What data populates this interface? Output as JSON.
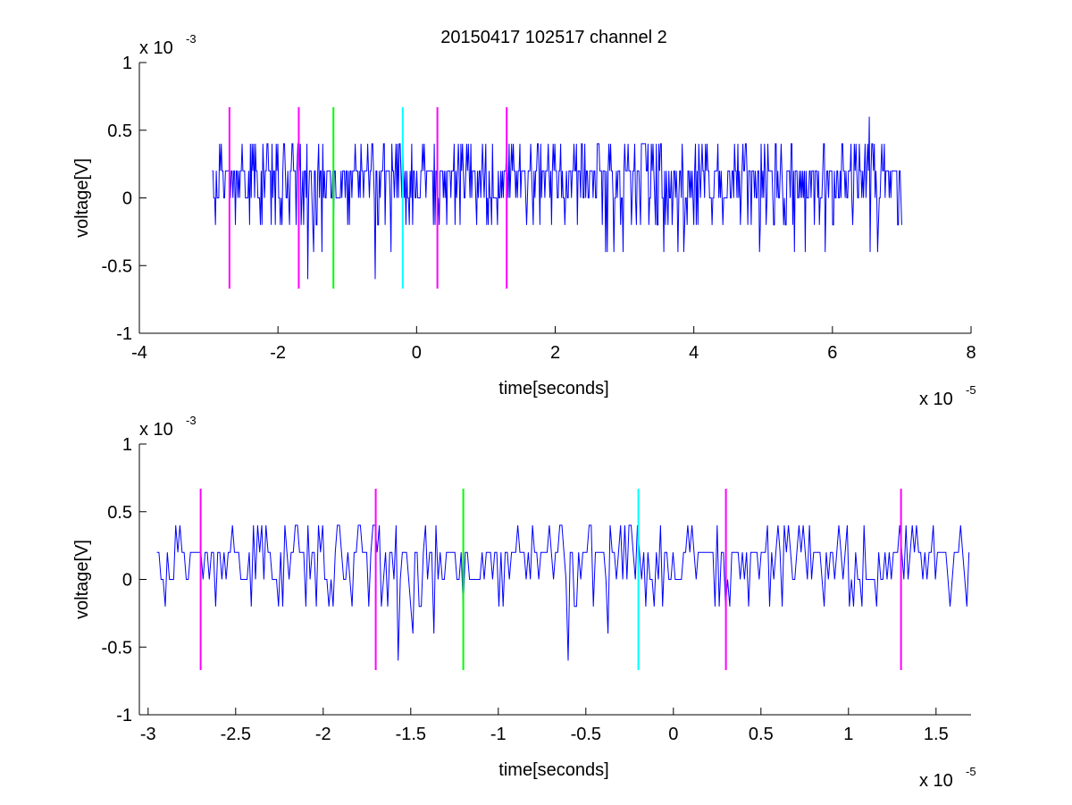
{
  "figure_title": "20150417 102517 channel 2",
  "chart_data": [
    {
      "type": "line",
      "title": "20150417 102517 channel 2",
      "xlabel": "time[seconds]",
      "ylabel": "voltage[V]",
      "x_exponent_label": "x 10",
      "x_exponent": "-5",
      "y_exponent_label": "x 10",
      "y_exponent": "-3",
      "xlim": [
        -4,
        8
      ],
      "ylim": [
        -1,
        1
      ],
      "xticks": [
        -4,
        -2,
        0,
        2,
        4,
        6,
        8
      ],
      "xtick_labels": [
        "-4",
        "-2",
        "0",
        "2",
        "4",
        "6",
        "8"
      ],
      "yticks": [
        -1,
        -0.5,
        0,
        0.5,
        1
      ],
      "ytick_labels": [
        "-1",
        "-0.5",
        "0",
        "0.5",
        "1"
      ],
      "signal": {
        "name": "",
        "color": "#0000ff",
        "x_start": -2.95,
        "x_end": 7.0,
        "baseline": 0.2,
        "value_step": 0.2,
        "min": -0.6,
        "max": 0.6
      },
      "markers": [
        {
          "x": -2.7,
          "color": "#ff00ff",
          "y0": -0.67,
          "y1": 0.67
        },
        {
          "x": -1.7,
          "color": "#ff00ff",
          "y0": -0.67,
          "y1": 0.67
        },
        {
          "x": -1.2,
          "color": "#00ff00",
          "y0": -0.67,
          "y1": 0.67
        },
        {
          "x": -0.2,
          "color": "#00ffff",
          "y0": -0.67,
          "y1": 0.67
        },
        {
          "x": 0.3,
          "color": "#ff00ff",
          "y0": -0.67,
          "y1": 0.67
        },
        {
          "x": 1.3,
          "color": "#ff00ff",
          "y0": -0.67,
          "y1": 0.67
        }
      ]
    },
    {
      "type": "line",
      "title": "",
      "xlabel": "time[seconds]",
      "ylabel": "voltage[V]",
      "x_exponent_label": "x 10",
      "x_exponent": "-5",
      "y_exponent_label": "x 10",
      "y_exponent": "-3",
      "xlim": [
        -3.05,
        1.7
      ],
      "ylim": [
        -1,
        1
      ],
      "xticks": [
        -3,
        -2.5,
        -2,
        -1.5,
        -1,
        -0.5,
        0,
        0.5,
        1,
        1.5
      ],
      "xtick_labels": [
        "-3",
        "-2.5",
        "-2",
        "-1.5",
        "-1",
        "-0.5",
        "0",
        "0.5",
        "1",
        "1.5"
      ],
      "yticks": [
        -1,
        -0.5,
        0,
        0.5,
        1
      ],
      "ytick_labels": [
        "-1",
        "-0.5",
        "0",
        "0.5",
        "1"
      ],
      "signal": {
        "name": "",
        "color": "#0000ff",
        "x_start": -2.95,
        "x_end": 1.7,
        "baseline": 0.2,
        "value_step": 0.2,
        "min": -0.6,
        "max": 0.6
      },
      "markers": [
        {
          "x": -2.7,
          "color": "#ff00ff",
          "y0": -0.67,
          "y1": 0.67
        },
        {
          "x": -1.7,
          "color": "#ff00ff",
          "y0": -0.67,
          "y1": 0.67
        },
        {
          "x": -1.2,
          "color": "#00ff00",
          "y0": -0.67,
          "y1": 0.67
        },
        {
          "x": -0.2,
          "color": "#00ffff",
          "y0": -0.67,
          "y1": 0.67
        },
        {
          "x": 0.3,
          "color": "#ff00ff",
          "y0": -0.67,
          "y1": 0.67
        },
        {
          "x": 1.3,
          "color": "#ff00ff",
          "y0": -0.67,
          "y1": 0.67
        }
      ]
    }
  ]
}
